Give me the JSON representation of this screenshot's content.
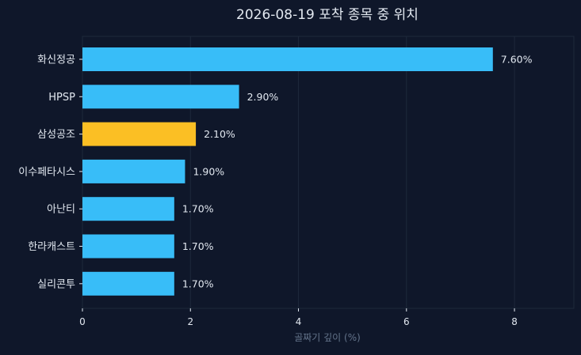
{
  "colors": {
    "background": "#0f172a",
    "plot_border": "#1e293b",
    "grid": "#1e293b",
    "text": "#e2e8f0",
    "muted_text": "#64748b",
    "bar_default": "#38bdf8",
    "bar_highlight": "#fbbf24"
  },
  "chart_data": {
    "type": "bar",
    "orientation": "horizontal",
    "title": "2026-08-19 포착 종목 중 위치",
    "xlabel": "골짜기 깊이 (%)",
    "ylabel": "",
    "xlim": [
      0,
      9.1
    ],
    "x_ticks": [
      0,
      2,
      4,
      6,
      8
    ],
    "x_tick_labels": [
      "0",
      "2",
      "4",
      "6",
      "8"
    ],
    "grid": "vertical",
    "categories": [
      "화신정공",
      "HPSP",
      "삼성공조",
      "이수페타시스",
      "아난티",
      "한라캐스트",
      "실리콘투"
    ],
    "values": [
      7.6,
      2.9,
      2.1,
      1.9,
      1.7,
      1.7,
      1.7
    ],
    "value_labels": [
      "7.60%",
      "2.90%",
      "2.10%",
      "1.90%",
      "1.70%",
      "1.70%",
      "1.70%"
    ],
    "highlight_category": "삼성공조"
  }
}
